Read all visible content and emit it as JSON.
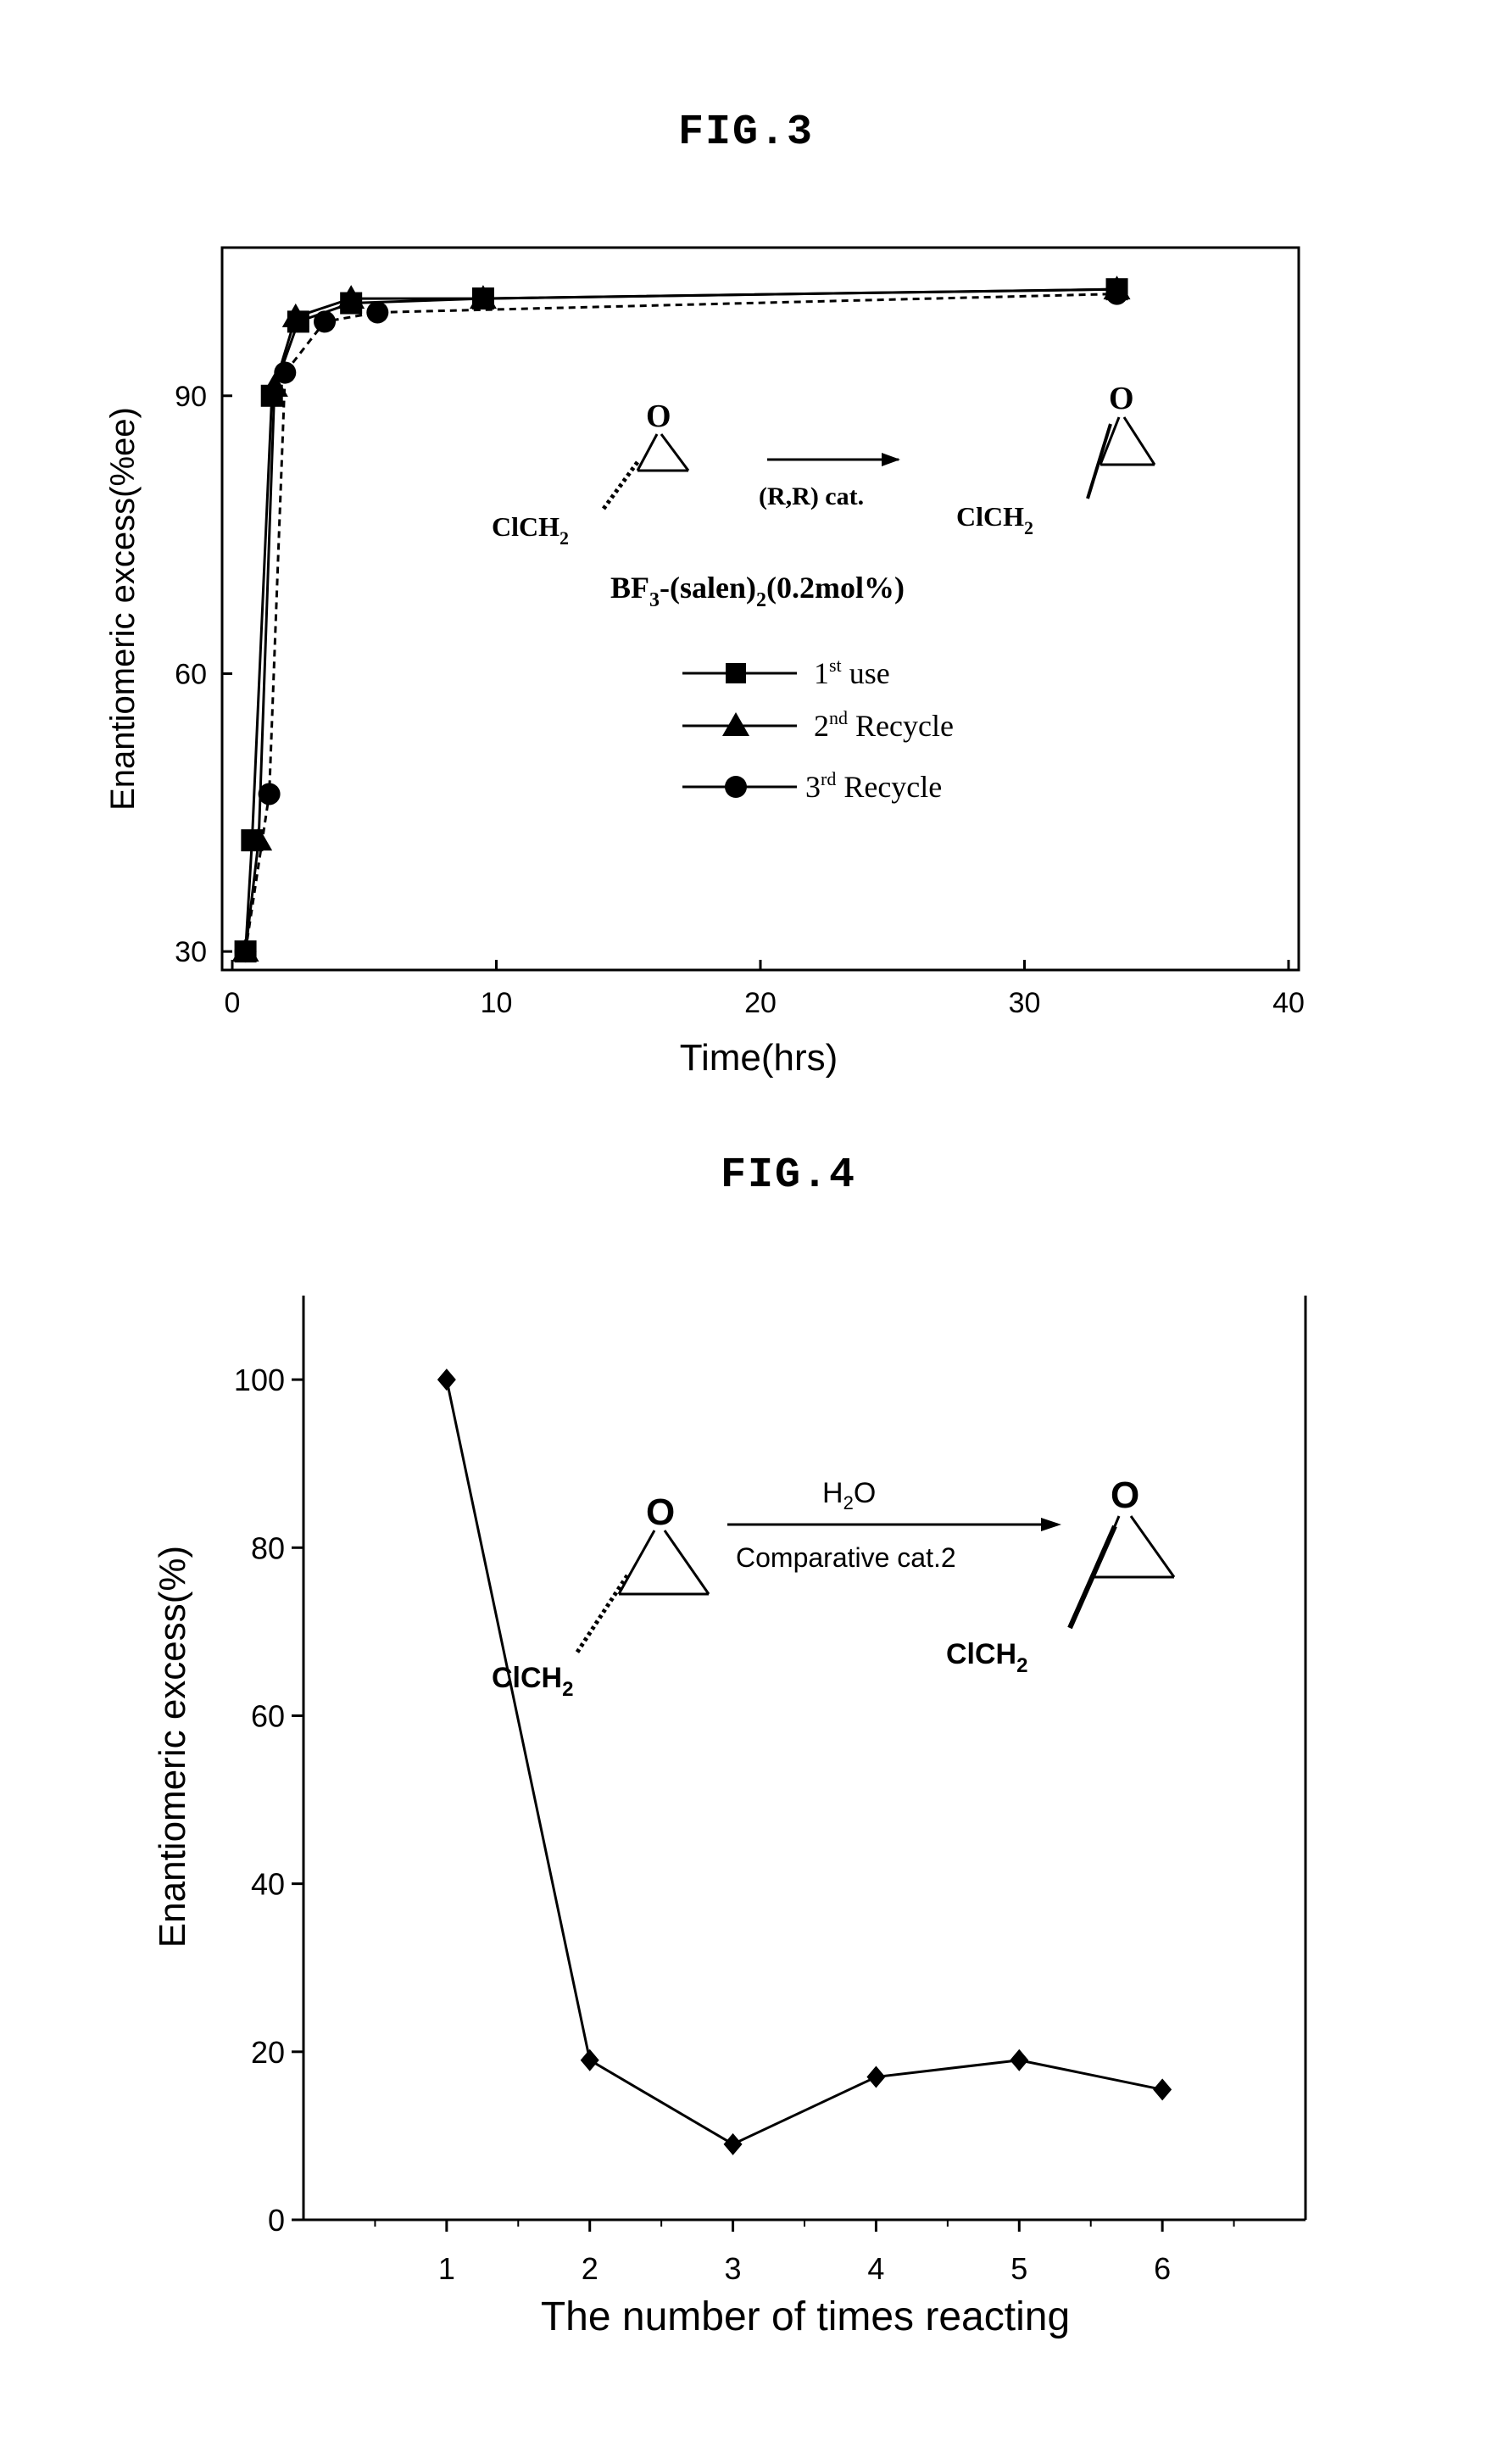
{
  "figures": [
    {
      "title": "FIG.3"
    },
    {
      "title": "FIG.4"
    }
  ],
  "chart_data": [
    {
      "type": "line",
      "xlabel": "Time(hrs)",
      "ylabel": "Enantiomeric excess(%ee)",
      "xlim": [
        0,
        40
      ],
      "ylim": [
        28,
        106
      ],
      "xticks": [
        0,
        10,
        20,
        30,
        40
      ],
      "xtick_labels": [
        "0",
        "10",
        "20",
        "30",
        "40"
      ],
      "yticks": [
        30,
        60,
        90
      ],
      "ytick_labels": [
        "30",
        "60",
        "90"
      ],
      "grid": false,
      "legend_position": "center",
      "series": [
        {
          "name": "1st use",
          "marker": "square",
          "x": [
            0.5,
            0.75,
            1.5,
            2.5,
            4.5,
            9.5,
            33.5
          ],
          "y": [
            30,
            42,
            90,
            98,
            100,
            100.5,
            101.5
          ]
        },
        {
          "name": "2nd Recycle",
          "marker": "triangle",
          "x": [
            0.5,
            1.0,
            1.6,
            2.4,
            4.5,
            9.5,
            33.5
          ],
          "y": [
            30,
            42,
            91,
            98.5,
            100.5,
            100.5,
            101.5
          ]
        },
        {
          "name": "3rd Recycle",
          "marker": "circle",
          "x": [
            0.5,
            1.4,
            2.0,
            3.5,
            5.5,
            33.5
          ],
          "y": [
            30,
            47,
            92.5,
            98,
            99,
            101
          ]
        }
      ],
      "legend": [
        {
          "base": "1",
          "sup": "st",
          "text": " use"
        },
        {
          "base": "2",
          "sup": "nd",
          "text": " Recycle"
        },
        {
          "base": "3",
          "sup": "rd",
          "text": " Recycle"
        }
      ],
      "annotation": {
        "reactant": "ClCH",
        "reactant_sub": "2",
        "product": "ClCH",
        "product_sub": "2",
        "oxygen": "O",
        "catalyst": "(R,R) cat.",
        "catalyst_line_a": "BF",
        "catalyst_line_a_sub": "3",
        "catalyst_line_b": "-(salen)",
        "catalyst_line_b_sub": "2",
        "catalyst_line_c": "(0.2mol%)"
      }
    },
    {
      "type": "line",
      "xlabel": "The number of times reacting",
      "ylabel": "Enantiomeric excess(%)",
      "xlim": [
        0,
        7
      ],
      "ylim": [
        0,
        110
      ],
      "categories": [
        "1",
        "2",
        "3",
        "4",
        "5",
        "6"
      ],
      "yticks": [
        0,
        20,
        40,
        60,
        80,
        100
      ],
      "ytick_labels": [
        "0",
        "20",
        "40",
        "60",
        "80",
        "100"
      ],
      "grid": false,
      "series": [
        {
          "marker": "diamond",
          "x": [
            1,
            2,
            3,
            4,
            5,
            6
          ],
          "y": [
            100,
            19,
            9,
            17,
            19,
            15.5
          ]
        }
      ],
      "annotation": {
        "reagent": "H",
        "reagent_sub": "2",
        "reagent_tail": "O",
        "catalyst": "Comparative cat.2",
        "reactant": "ClCH",
        "reactant_sub": "2",
        "product": "ClCH",
        "product_sub": "2",
        "oxygen": "O"
      }
    }
  ]
}
